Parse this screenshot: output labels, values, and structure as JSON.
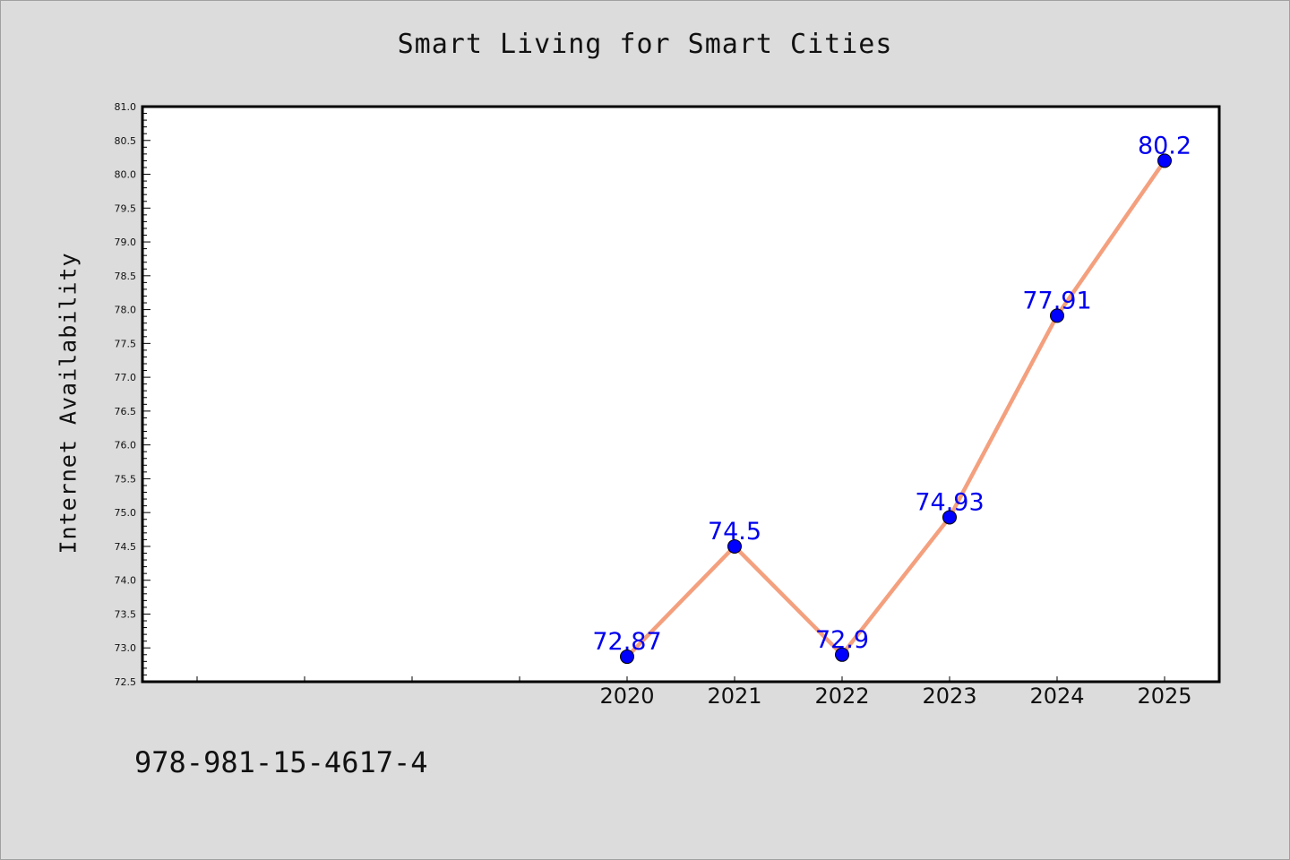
{
  "chart_data": {
    "type": "line",
    "title": "Smart Living for Smart Cities",
    "ylabel": "Internet Availability",
    "xlabel": "",
    "categories": [
      "2020",
      "2021",
      "2022",
      "2023",
      "2024",
      "2025"
    ],
    "series": [
      {
        "values": [
          72.87,
          74.5,
          72.9,
          74.93,
          77.91,
          80.2
        ],
        "labels": [
          "72.87",
          "74.5",
          "72.9",
          "74.93",
          "77.91",
          "80.2"
        ]
      }
    ],
    "ylim": [
      72.5,
      81.0
    ],
    "yticks": [
      "72.5",
      "73.0",
      "73.5",
      "74.0",
      "74.5",
      "75.0",
      "75.5",
      "76.0",
      "76.5",
      "77.0",
      "77.5",
      "78.0",
      "78.5",
      "79.0",
      "79.5",
      "80.0",
      "80.5",
      "81.0"
    ],
    "line_color": "#f4a07e",
    "marker_color": "#0000ff",
    "label_color": "#0000ee",
    "grid": false,
    "legend": "none"
  },
  "footer": {
    "isbn": "978-981-15-4617-4"
  }
}
